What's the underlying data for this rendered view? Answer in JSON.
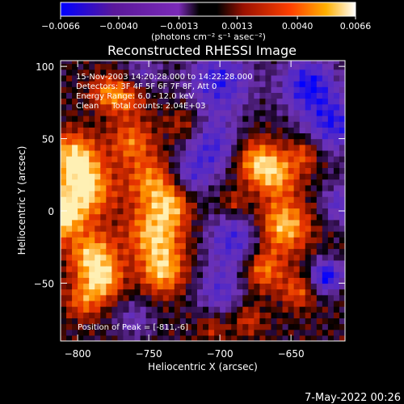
{
  "chart_data": {
    "type": "heatmap",
    "title": "Reconstructed RHESSI Image",
    "xlabel": "Heliocentric X (arcsec)",
    "ylabel": "Heliocentric Y (arcsec)",
    "xlim": [
      -812,
      -612
    ],
    "ylim": [
      -90,
      104
    ],
    "x_ticks": [
      -800,
      -750,
      -700,
      -650
    ],
    "x_tick_labels": [
      "−800",
      "−750",
      "−700",
      "−650"
    ],
    "y_ticks": [
      100,
      50,
      0,
      -50
    ],
    "y_tick_labels": [
      "100",
      "50",
      "0",
      "−50"
    ],
    "colorbar": {
      "range": [
        -0.0066,
        0.0066
      ],
      "ticks": [
        -0.0066,
        -0.004,
        -0.0013,
        0.0013,
        0.004,
        0.0066
      ],
      "tick_labels": [
        "−0.0066",
        "−0.0040",
        "−0.0013",
        "0.0013",
        "0.0040",
        "0.0066"
      ],
      "unit_label": "(photons cm⁻² s⁻¹ asec⁻²)",
      "colors": [
        "#0000ff",
        "#5a189a",
        "#7b2ab8",
        "#000000",
        "#9a1100",
        "#ff4000",
        "#ffb000",
        "#ffffff"
      ]
    },
    "annotations": [
      "15-Nov-2003 14:20:28.000 to 14:22:28.000",
      "Detectors: 3F 4F 5F 6F 7F 8F, Att 0",
      "Energy Range: 6.0 - 12.0 keV",
      "Clean     Total counts: 2.04E+03"
    ],
    "peak_label": "Position of Peak = [-811,-6]",
    "peak_position": [
      -811,
      -6
    ],
    "grid": false
  },
  "footer": {
    "timestamp": "7-May-2022 00:26"
  }
}
